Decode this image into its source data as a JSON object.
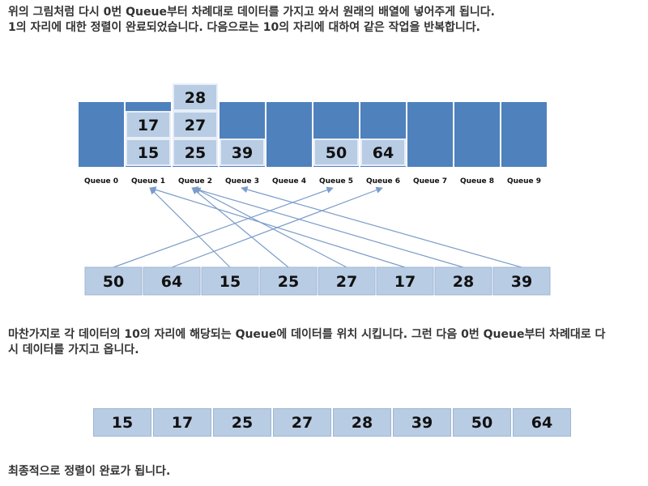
{
  "paragraphs": {
    "p1": [
      "위의 그림처럼 다시 0번 Queue부터 차례대로 데이터를 가지고 와서 원래의 배열에 넣어주게 됩니다.",
      "1의 자리에 대한 정렬이 완료되었습니다. 다음으로는 10의 자리에 대하여 같은 작업을 반복합니다."
    ],
    "p2": [
      "마찬가지로 각 데이터의 10의 자리에 해당되는 Queue에 데이터를 위치 시킵니다. 그런 다음 0번 Queue부터 차례대로 다",
      "시 데이터를 가지고 옵니다."
    ],
    "p3": [
      "최종적으로 정렬이 완료가 됩니다."
    ]
  },
  "queues": [
    {
      "label": "Queue 0",
      "items": []
    },
    {
      "label": "Queue 1",
      "items": [
        "15",
        "17"
      ]
    },
    {
      "label": "Queue 2",
      "items": [
        "25",
        "27",
        "28"
      ]
    },
    {
      "label": "Queue 3",
      "items": [
        "39"
      ]
    },
    {
      "label": "Queue 4",
      "items": []
    },
    {
      "label": "Queue 5",
      "items": [
        "50"
      ]
    },
    {
      "label": "Queue 6",
      "items": [
        "64"
      ]
    },
    {
      "label": "Queue 7",
      "items": []
    },
    {
      "label": "Queue 8",
      "items": []
    },
    {
      "label": "Queue 9",
      "items": []
    }
  ],
  "input_array": [
    "50",
    "64",
    "15",
    "25",
    "27",
    "17",
    "28",
    "39"
  ],
  "mappings": [
    {
      "from_index": 0,
      "to_queue": 5
    },
    {
      "from_index": 1,
      "to_queue": 6
    },
    {
      "from_index": 2,
      "to_queue": 1
    },
    {
      "from_index": 3,
      "to_queue": 2
    },
    {
      "from_index": 4,
      "to_queue": 2
    },
    {
      "from_index": 5,
      "to_queue": 1
    },
    {
      "from_index": 6,
      "to_queue": 2
    },
    {
      "from_index": 7,
      "to_queue": 3
    }
  ],
  "sorted_array": [
    "15",
    "17",
    "25",
    "27",
    "28",
    "39",
    "50",
    "64"
  ],
  "colors": {
    "queue_fill": "#4f81bd",
    "item_fill": "#b8cce4",
    "item_border": "#e8eef7",
    "arrow": "#7a9cc9"
  }
}
